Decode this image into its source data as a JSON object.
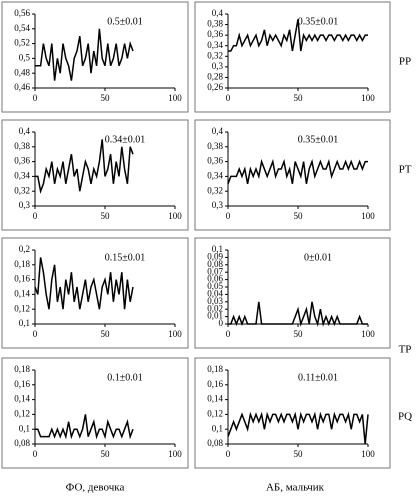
{
  "row_labels": [
    "PP",
    "PT",
    "TP",
    "PQ"
  ],
  "column_labels": [
    "ФО, девочка",
    "АБ, мальчик"
  ],
  "chart_data": [
    {
      "type": "line",
      "annotation": "0.5±0.01",
      "xlim": [
        0,
        100
      ],
      "xticks": [
        0,
        50,
        100
      ],
      "ylim": [
        0.46,
        0.56
      ],
      "yticks": [
        {
          "value": 0.46,
          "label": "0,46"
        },
        {
          "value": 0.48,
          "label": "0,48"
        },
        {
          "value": 0.5,
          "label": "0,5"
        },
        {
          "value": 0.52,
          "label": "0,52"
        },
        {
          "value": 0.54,
          "label": "0,54"
        },
        {
          "value": 0.56,
          "label": "0,56"
        }
      ],
      "x": [
        0,
        2,
        4,
        6,
        8,
        10,
        12,
        14,
        16,
        18,
        20,
        22,
        24,
        26,
        28,
        30,
        32,
        34,
        36,
        38,
        40,
        42,
        44,
        46,
        48,
        50,
        52,
        54,
        56,
        58,
        60,
        62,
        64,
        66,
        68,
        70
      ],
      "series": [
        {
          "color": "#000000",
          "values": [
            0.49,
            0.49,
            0.49,
            0.52,
            0.5,
            0.49,
            0.52,
            0.47,
            0.5,
            0.48,
            0.52,
            0.5,
            0.49,
            0.47,
            0.5,
            0.51,
            0.53,
            0.49,
            0.5,
            0.52,
            0.48,
            0.51,
            0.49,
            0.54,
            0.5,
            0.49,
            0.52,
            0.49,
            0.5,
            0.52,
            0.49,
            0.5,
            0.52,
            0.5,
            0.52,
            0.51
          ]
        }
      ]
    },
    {
      "type": "line",
      "annotation": "0.35±0.01",
      "xlim": [
        0,
        100
      ],
      "xticks": [
        0,
        50,
        100
      ],
      "ylim": [
        0.26,
        0.4
      ],
      "yticks": [
        {
          "value": 0.26,
          "label": "0,26"
        },
        {
          "value": 0.28,
          "label": "0,28"
        },
        {
          "value": 0.3,
          "label": "0,3"
        },
        {
          "value": 0.32,
          "label": "0,32"
        },
        {
          "value": 0.34,
          "label": "0,34"
        },
        {
          "value": 0.36,
          "label": "0,36"
        },
        {
          "value": 0.38,
          "label": "0,38"
        },
        {
          "value": 0.4,
          "label": "0,4"
        }
      ],
      "x": [
        0,
        2,
        4,
        6,
        8,
        10,
        12,
        14,
        16,
        18,
        20,
        22,
        24,
        26,
        28,
        30,
        32,
        34,
        36,
        38,
        40,
        42,
        44,
        46,
        48,
        50,
        52,
        54,
        56,
        58,
        60,
        62,
        64,
        66,
        68,
        70,
        72,
        74,
        76,
        78,
        80,
        82,
        84,
        86,
        88,
        90,
        92,
        94,
        96,
        98,
        100
      ],
      "series": [
        {
          "color": "#000000",
          "values": [
            0.33,
            0.33,
            0.34,
            0.34,
            0.36,
            0.34,
            0.35,
            0.36,
            0.34,
            0.35,
            0.36,
            0.34,
            0.35,
            0.37,
            0.34,
            0.36,
            0.35,
            0.36,
            0.35,
            0.34,
            0.36,
            0.35,
            0.37,
            0.33,
            0.36,
            0.39,
            0.33,
            0.36,
            0.35,
            0.36,
            0.35,
            0.36,
            0.35,
            0.36,
            0.36,
            0.35,
            0.36,
            0.36,
            0.35,
            0.36,
            0.36,
            0.35,
            0.36,
            0.35,
            0.36,
            0.36,
            0.35,
            0.36,
            0.35,
            0.36,
            0.36
          ]
        }
      ]
    },
    {
      "type": "line",
      "annotation": "0.34±0.01",
      "xlim": [
        0,
        100
      ],
      "xticks": [
        0,
        50,
        100
      ],
      "ylim": [
        0.3,
        0.4
      ],
      "yticks": [
        {
          "value": 0.3,
          "label": "0,3"
        },
        {
          "value": 0.32,
          "label": "0,32"
        },
        {
          "value": 0.34,
          "label": "0,34"
        },
        {
          "value": 0.36,
          "label": "0,36"
        },
        {
          "value": 0.38,
          "label": "0,38"
        },
        {
          "value": 0.4,
          "label": "0,4"
        }
      ],
      "x": [
        0,
        2,
        4,
        6,
        8,
        10,
        12,
        14,
        16,
        18,
        20,
        22,
        24,
        26,
        28,
        30,
        32,
        34,
        36,
        38,
        40,
        42,
        44,
        46,
        48,
        50,
        52,
        54,
        56,
        58,
        60,
        62,
        64,
        66,
        68,
        70
      ],
      "series": [
        {
          "color": "#000000",
          "values": [
            0.34,
            0.34,
            0.32,
            0.33,
            0.35,
            0.34,
            0.36,
            0.33,
            0.35,
            0.34,
            0.36,
            0.33,
            0.35,
            0.37,
            0.34,
            0.35,
            0.32,
            0.34,
            0.36,
            0.35,
            0.33,
            0.35,
            0.34,
            0.36,
            0.39,
            0.34,
            0.35,
            0.37,
            0.33,
            0.36,
            0.34,
            0.38,
            0.35,
            0.33,
            0.38,
            0.37
          ]
        }
      ]
    },
    {
      "type": "line",
      "annotation": "0.35±0.01",
      "xlim": [
        0,
        100
      ],
      "xticks": [
        0,
        50,
        100
      ],
      "ylim": [
        0.3,
        0.4
      ],
      "yticks": [
        {
          "value": 0.3,
          "label": "0,3"
        },
        {
          "value": 0.32,
          "label": "0,32"
        },
        {
          "value": 0.34,
          "label": "0,34"
        },
        {
          "value": 0.36,
          "label": "0,36"
        },
        {
          "value": 0.38,
          "label": "0,38"
        },
        {
          "value": 0.4,
          "label": "0,4"
        }
      ],
      "x": [
        0,
        2,
        4,
        6,
        8,
        10,
        12,
        14,
        16,
        18,
        20,
        22,
        24,
        26,
        28,
        30,
        32,
        34,
        36,
        38,
        40,
        42,
        44,
        46,
        48,
        50,
        52,
        54,
        56,
        58,
        60,
        62,
        64,
        66,
        68,
        70,
        72,
        74,
        76,
        78,
        80,
        82,
        84,
        86,
        88,
        90,
        92,
        94,
        96,
        98,
        100
      ],
      "series": [
        {
          "color": "#000000",
          "values": [
            0.33,
            0.34,
            0.34,
            0.34,
            0.35,
            0.34,
            0.35,
            0.33,
            0.35,
            0.34,
            0.35,
            0.34,
            0.36,
            0.35,
            0.34,
            0.35,
            0.36,
            0.34,
            0.35,
            0.35,
            0.36,
            0.34,
            0.35,
            0.33,
            0.36,
            0.35,
            0.34,
            0.36,
            0.33,
            0.35,
            0.36,
            0.34,
            0.35,
            0.36,
            0.35,
            0.35,
            0.36,
            0.34,
            0.35,
            0.36,
            0.35,
            0.35,
            0.36,
            0.35,
            0.36,
            0.35,
            0.35,
            0.36,
            0.35,
            0.36,
            0.36
          ]
        }
      ]
    },
    {
      "type": "line",
      "annotation": "0.15±0.01",
      "xlim": [
        0,
        100
      ],
      "xticks": [
        0,
        50,
        100
      ],
      "ylim": [
        0.1,
        0.2
      ],
      "yticks": [
        {
          "value": 0.1,
          "label": "0,1"
        },
        {
          "value": 0.12,
          "label": "0,12"
        },
        {
          "value": 0.14,
          "label": "0,14"
        },
        {
          "value": 0.16,
          "label": "0,16"
        },
        {
          "value": 0.18,
          "label": "0,18"
        },
        {
          "value": 0.2,
          "label": "0,2"
        }
      ],
      "x": [
        0,
        2,
        4,
        6,
        8,
        10,
        12,
        14,
        16,
        18,
        20,
        22,
        24,
        26,
        28,
        30,
        32,
        34,
        36,
        38,
        40,
        42,
        44,
        46,
        48,
        50,
        52,
        54,
        56,
        58,
        60,
        62,
        64,
        66,
        68,
        70
      ],
      "series": [
        {
          "color": "#000000",
          "values": [
            0.15,
            0.14,
            0.19,
            0.17,
            0.14,
            0.12,
            0.16,
            0.18,
            0.13,
            0.15,
            0.12,
            0.16,
            0.14,
            0.17,
            0.13,
            0.15,
            0.12,
            0.14,
            0.16,
            0.13,
            0.15,
            0.16,
            0.14,
            0.12,
            0.15,
            0.16,
            0.14,
            0.17,
            0.13,
            0.16,
            0.14,
            0.17,
            0.12,
            0.16,
            0.13,
            0.15
          ]
        }
      ]
    },
    {
      "type": "line",
      "annotation": "0±0.01",
      "xlim": [
        0,
        100
      ],
      "xticks": [
        0,
        50,
        100
      ],
      "ylim": [
        0,
        0.1
      ],
      "yticks": [
        0,
        {
          "value": 0.01,
          "label": "0,01"
        },
        {
          "value": 0.02,
          "label": "0,02"
        },
        {
          "value": 0.03,
          "label": "0,03"
        },
        {
          "value": 0.04,
          "label": "0,04"
        },
        {
          "value": 0.05,
          "label": "0,05"
        },
        {
          "value": 0.06,
          "label": "0,06"
        },
        {
          "value": 0.07,
          "label": "0,07"
        },
        {
          "value": 0.08,
          "label": "0,08"
        },
        {
          "value": 0.09,
          "label": "0,09"
        },
        {
          "value": 0.1,
          "label": "0,1"
        }
      ],
      "x": [
        0,
        2,
        4,
        6,
        8,
        10,
        12,
        14,
        16,
        18,
        20,
        22,
        24,
        26,
        28,
        30,
        32,
        34,
        36,
        38,
        40,
        42,
        44,
        46,
        48,
        50,
        52,
        54,
        56,
        58,
        60,
        62,
        64,
        66,
        68,
        70,
        72,
        74,
        76,
        78,
        80,
        82,
        84,
        86,
        88,
        90,
        92,
        94,
        96,
        98,
        100
      ],
      "series": [
        {
          "color": "#000000",
          "values": [
            0,
            0,
            0.01,
            0,
            0.01,
            0,
            0.01,
            0,
            0,
            0,
            0,
            0.03,
            0,
            0,
            0,
            0,
            0,
            0,
            0,
            0,
            0,
            0,
            0,
            0,
            0.01,
            0.02,
            0,
            0.01,
            0.02,
            0,
            0.03,
            0.01,
            0,
            0.02,
            0,
            0.01,
            0,
            0.01,
            0,
            0.01,
            0,
            0,
            0,
            0,
            0,
            0,
            0,
            0.01,
            0,
            0,
            0
          ]
        }
      ]
    },
    {
      "type": "line",
      "annotation": "0.1±0.01",
      "xlim": [
        0,
        100
      ],
      "xticks": [
        0,
        50,
        100
      ],
      "ylim": [
        0.08,
        0.18
      ],
      "yticks": [
        {
          "value": 0.08,
          "label": "0,08"
        },
        {
          "value": 0.1,
          "label": "0,1"
        },
        {
          "value": 0.12,
          "label": "0,12"
        },
        {
          "value": 0.14,
          "label": "0,14"
        },
        {
          "value": 0.16,
          "label": "0,16"
        },
        {
          "value": 0.18,
          "label": "0,18"
        }
      ],
      "x": [
        0,
        2,
        4,
        6,
        8,
        10,
        12,
        14,
        16,
        18,
        20,
        22,
        24,
        26,
        28,
        30,
        32,
        34,
        36,
        38,
        40,
        42,
        44,
        46,
        48,
        50,
        52,
        54,
        56,
        58,
        60,
        62,
        64,
        66,
        68,
        70
      ],
      "series": [
        {
          "color": "#000000",
          "values": [
            0.1,
            0.1,
            0.09,
            0.09,
            0.09,
            0.09,
            0.1,
            0.09,
            0.1,
            0.09,
            0.1,
            0.09,
            0.11,
            0.09,
            0.1,
            0.1,
            0.09,
            0.1,
            0.12,
            0.09,
            0.1,
            0.11,
            0.09,
            0.1,
            0.1,
            0.09,
            0.11,
            0.1,
            0.09,
            0.1,
            0.1,
            0.09,
            0.1,
            0.11,
            0.09,
            0.1
          ]
        }
      ]
    },
    {
      "type": "line",
      "annotation": "0.11±0.01",
      "xlim": [
        0,
        100
      ],
      "xticks": [
        0,
        50,
        100
      ],
      "ylim": [
        0.08,
        0.18
      ],
      "yticks": [
        {
          "value": 0.08,
          "label": "0,08"
        },
        {
          "value": 0.1,
          "label": "0,1"
        },
        {
          "value": 0.12,
          "label": "0,12"
        },
        {
          "value": 0.14,
          "label": "0,14"
        },
        {
          "value": 0.16,
          "label": "0,16"
        },
        {
          "value": 0.18,
          "label": "0,18"
        }
      ],
      "x": [
        0,
        2,
        4,
        6,
        8,
        10,
        12,
        14,
        16,
        18,
        20,
        22,
        24,
        26,
        28,
        30,
        32,
        34,
        36,
        38,
        40,
        42,
        44,
        46,
        48,
        50,
        52,
        54,
        56,
        58,
        60,
        62,
        64,
        66,
        68,
        70,
        72,
        74,
        76,
        78,
        80,
        82,
        84,
        86,
        88,
        90,
        92,
        94,
        96,
        98,
        100
      ],
      "series": [
        {
          "color": "#000000",
          "values": [
            0.09,
            0.1,
            0.11,
            0.1,
            0.11,
            0.12,
            0.11,
            0.1,
            0.12,
            0.11,
            0.12,
            0.11,
            0.12,
            0.1,
            0.12,
            0.11,
            0.12,
            0.12,
            0.11,
            0.12,
            0.11,
            0.12,
            0.12,
            0.11,
            0.12,
            0.1,
            0.12,
            0.11,
            0.12,
            0.12,
            0.11,
            0.12,
            0.1,
            0.12,
            0.11,
            0.12,
            0.12,
            0.1,
            0.12,
            0.11,
            0.12,
            0.12,
            0.11,
            0.12,
            0.1,
            0.12,
            0.12,
            0.11,
            0.12,
            0.08,
            0.12
          ]
        }
      ]
    }
  ]
}
